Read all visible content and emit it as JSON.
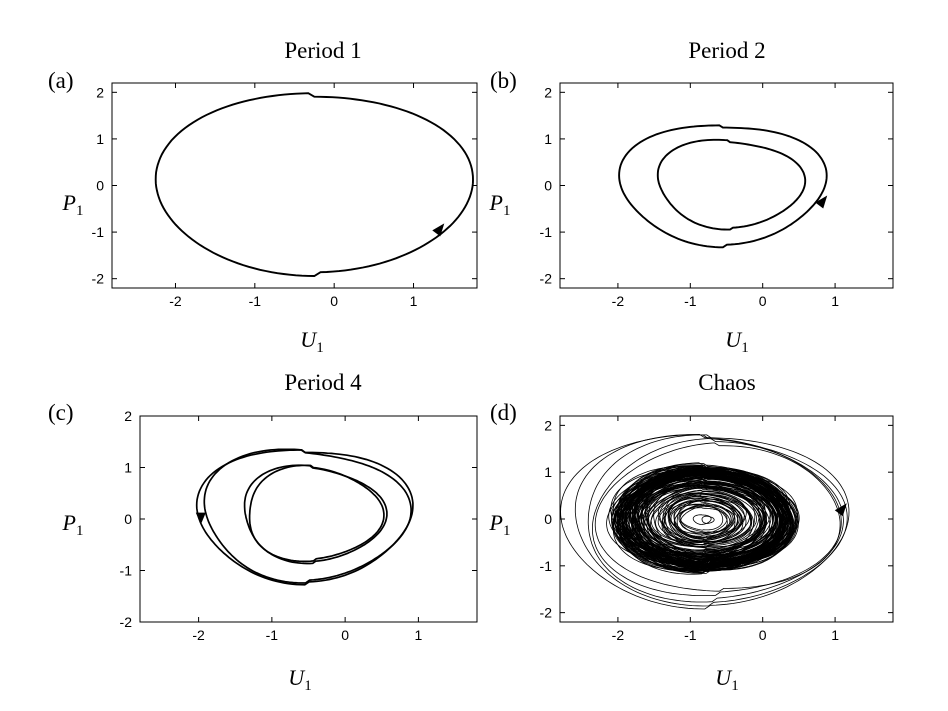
{
  "chart_data": [
    {
      "type": "line",
      "panel_label": "(a)",
      "title": "Period 1",
      "xlabel": "U",
      "xlabel_sub": "1",
      "ylabel": "P",
      "ylabel_sub": "1",
      "xlim": [
        -2.8,
        1.8
      ],
      "ylim": [
        -2.2,
        2.2
      ],
      "xticks": [
        "-2",
        "-1",
        "0",
        "1"
      ],
      "xtick_values": [
        -2,
        -1,
        0,
        1
      ],
      "yticks": [
        "2",
        "1",
        "0",
        "-1",
        "-2"
      ],
      "ytick_values": [
        2,
        1,
        0,
        -1,
        -2
      ],
      "grid": false,
      "series": [
        {
          "style": "closed-orbit",
          "loops": 1,
          "radius_factors": [
            1.0
          ],
          "cx": -0.25,
          "cy": 0.05,
          "rx": 1.98,
          "ry": 1.98,
          "width": 1.9
        }
      ],
      "arrow": {
        "x": 1.35,
        "y": -0.9
      }
    },
    {
      "type": "line",
      "panel_label": "(b)",
      "title": "Period 2",
      "xlabel": "U",
      "xlabel_sub": "1",
      "ylabel": "P",
      "ylabel_sub": "1",
      "xlim": [
        -2.8,
        1.8
      ],
      "ylim": [
        -2.2,
        2.2
      ],
      "xticks": [
        "-2",
        "-1",
        "0",
        "1"
      ],
      "xtick_values": [
        -2,
        -1,
        0,
        1
      ],
      "yticks": [
        "2",
        "1",
        "0",
        "-1",
        "-2"
      ],
      "ytick_values": [
        2,
        1,
        0,
        -1,
        -2
      ],
      "grid": false,
      "series": [
        {
          "style": "closed-orbit",
          "loops": 2,
          "radius_factors": [
            1.0,
            0.72
          ],
          "cx": -0.55,
          "cy": 0.05,
          "rx": 1.38,
          "ry": 1.35,
          "width": 1.9
        }
      ],
      "arrow": {
        "x": 0.85,
        "y": -0.3
      }
    },
    {
      "type": "line",
      "panel_label": "(c)",
      "title": "Period 4",
      "xlabel": "U",
      "xlabel_sub": "1",
      "ylabel": "P",
      "ylabel_sub": "1",
      "xlim": [
        -2.8,
        1.8
      ],
      "ylim": [
        -2.0,
        2.0
      ],
      "xticks": [
        "-2",
        "-1",
        "0",
        "1"
      ],
      "xtick_values": [
        -2,
        -1,
        0,
        1
      ],
      "yticks": [
        "2",
        "1",
        "0",
        "-1",
        "-2"
      ],
      "ytick_values": [
        2,
        1,
        0,
        -1,
        -2
      ],
      "grid": false,
      "series": [
        {
          "style": "closed-orbit",
          "loops": 4,
          "radius_factors": [
            1.0,
            0.97,
            0.69,
            0.665
          ],
          "cx": -0.55,
          "cy": 0.1,
          "rx": 1.42,
          "ry": 1.35,
          "width": 1.7
        }
      ],
      "arrow": {
        "x": -1.97,
        "y": -0.05
      }
    },
    {
      "type": "line",
      "panel_label": "(d)",
      "title": "Chaos",
      "xlabel": "U",
      "xlabel_sub": "1",
      "ylabel": "P",
      "ylabel_sub": "1",
      "xlim": [
        -2.8,
        1.8
      ],
      "ylim": [
        -2.2,
        2.2
      ],
      "xticks": [
        "-2",
        "-1",
        "0",
        "1"
      ],
      "xtick_values": [
        -2,
        -1,
        0,
        1
      ],
      "yticks": [
        "2",
        "1",
        "0",
        "-1",
        "-2"
      ],
      "ytick_values": [
        2,
        1,
        0,
        -1,
        -2
      ],
      "grid": false,
      "series": [
        {
          "style": "chaotic-orbit",
          "loops": 140,
          "radius_range": [
            0.05,
            1.0
          ],
          "outer_orbits": [
            1.0,
            0.96,
            0.92,
            0.88,
            0.85
          ],
          "cx": -0.8,
          "cy": 0.0,
          "rx": 1.95,
          "ry": 1.9,
          "width": 0.8
        }
      ],
      "arrow": {
        "x": 1.12,
        "y": 0.25
      }
    }
  ]
}
